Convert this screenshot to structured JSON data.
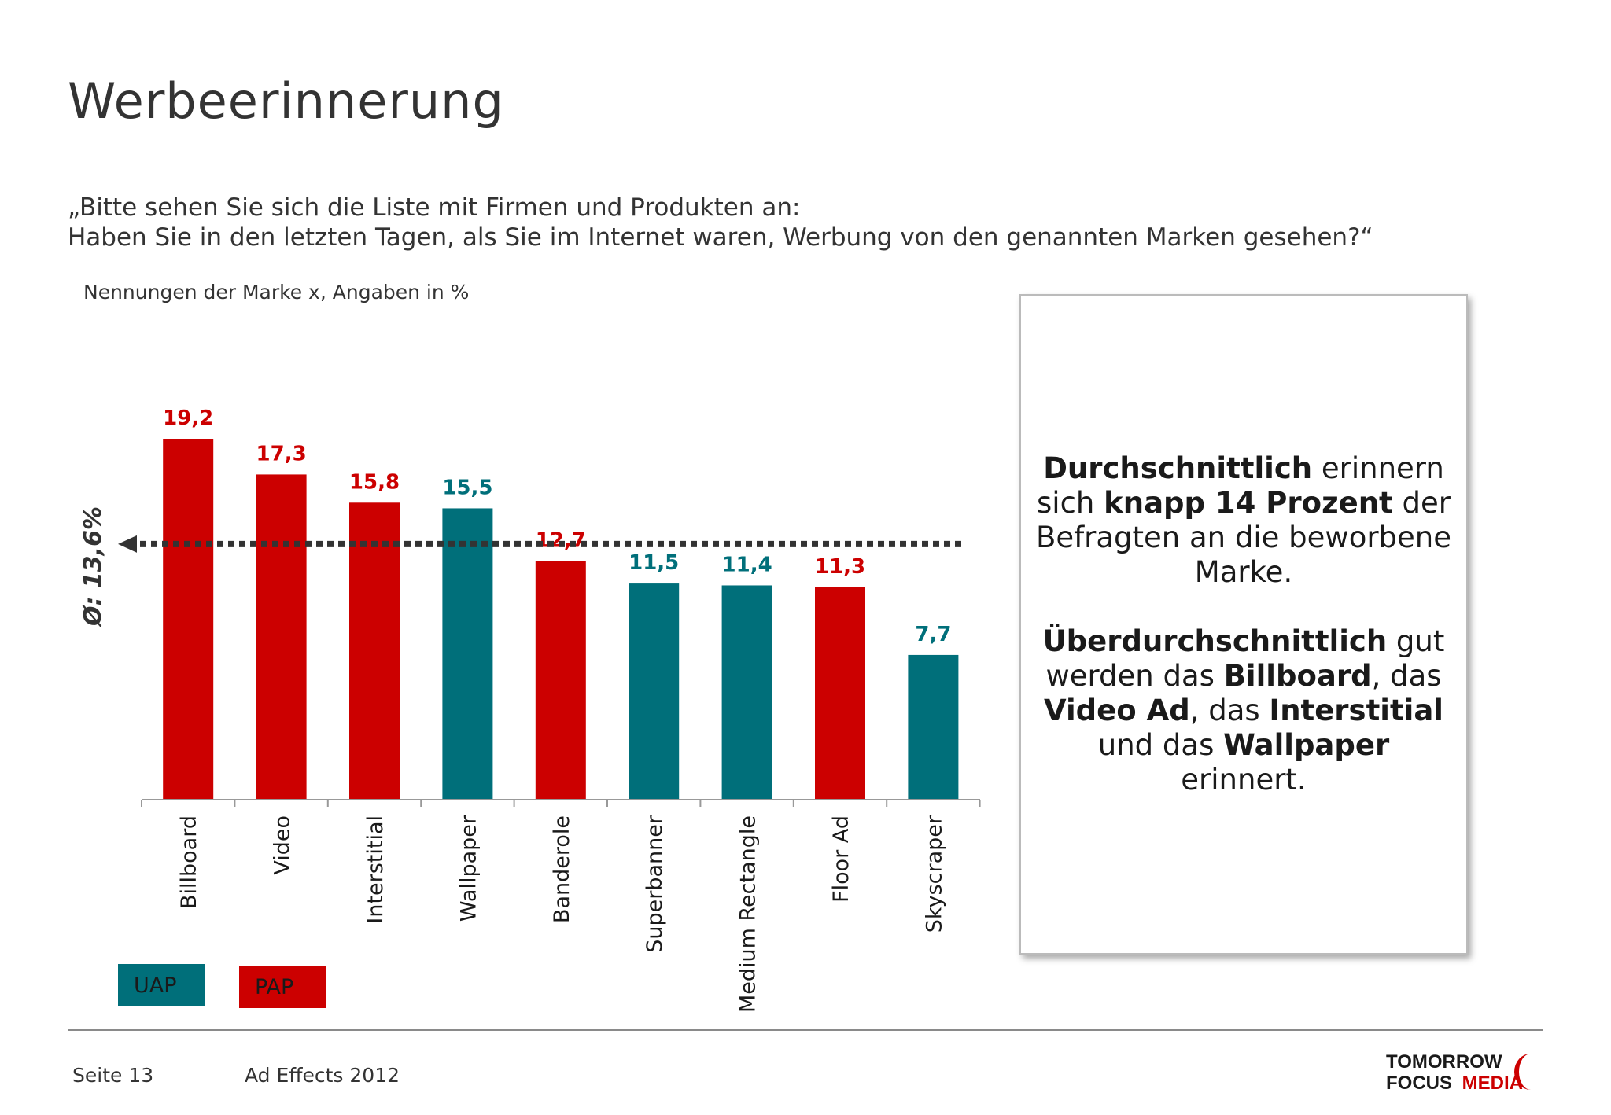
{
  "title": "Werbeerinnerung",
  "question": {
    "line1": "„Bitte sehen Sie sich die Liste mit Firmen und Produkten an:",
    "line2": "Haben Sie in den letzten Tagen, als Sie im Internet waren, Werbung von den genannten Marken gesehen?“"
  },
  "chart_subtitle": "Nennungen der Marke x, Angaben in %",
  "colors": {
    "uap": "#006f7a",
    "pap": "#cc0000",
    "average_line": "#333333"
  },
  "chart_data": {
    "type": "bar",
    "categories": [
      "Billboard",
      "Video",
      "Interstitial",
      "Wallpaper",
      "Banderole",
      "Superbanner",
      "Medium Rectangle",
      "Floor Ad",
      "Skyscraper"
    ],
    "values": [
      19.2,
      17.3,
      15.8,
      15.5,
      12.7,
      11.5,
      11.4,
      11.3,
      7.7
    ],
    "value_labels": [
      "19,2",
      "17,3",
      "15,8",
      "15,5",
      "12,7",
      "11,5",
      "11,4",
      "11,3",
      "7,7"
    ],
    "groups": [
      "PAP",
      "PAP",
      "PAP",
      "UAP",
      "PAP",
      "UAP",
      "UAP",
      "PAP",
      "UAP"
    ],
    "ylim": [
      0,
      19.2
    ],
    "average": 13.6,
    "average_label": "Ø: 13,6%",
    "legend": [
      "UAP",
      "PAP"
    ],
    "legend_placement": "bottom-left",
    "grid": false,
    "title": "",
    "xlabel": "",
    "ylabel": ""
  },
  "legend": {
    "uap": "UAP",
    "pap": "PAP"
  },
  "info_box": {
    "p1_b1": "Durchschnittlich",
    "p1_t1": " erinnern sich ",
    "p1_b2": "knapp 14 Prozent",
    "p1_t2": " der Befragten an die beworbene Marke.",
    "p2_b1": "Überdurchschnittlich",
    "p2_t1": " gut werden das ",
    "p2_b2": "Billboard",
    "p2_t2": ", das ",
    "p2_b3": "Video Ad",
    "p2_t3": ", das ",
    "p2_b4": "Interstitial",
    "p2_t4": " und das ",
    "p2_b5": "Wallpaper",
    "p2_t5": " erinnert."
  },
  "footer": {
    "page": "Seite 13",
    "event": "Ad Effects 2012"
  },
  "logo": {
    "line1": "TOMORROW",
    "line2a": "FOCUS",
    "line2b": "MEDIA"
  }
}
